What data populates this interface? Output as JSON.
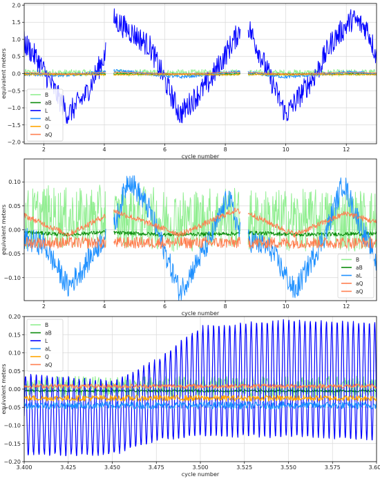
{
  "colors": {
    "B": "#90ee90",
    "aB": "#0a8a0a",
    "L": "#0000ff",
    "aL": "#1e90ff",
    "Q": "#ffa500",
    "aQ": "#ff7f50",
    "grid": "#d8d8d8",
    "axes": "#000000"
  },
  "chart_data": [
    {
      "type": "line",
      "xlabel": "cycle number",
      "ylabel": "equivalent meters",
      "xlim": [
        1.35,
        13.0
      ],
      "ylim": [
        -2.05,
        2.05
      ],
      "xticks": [
        2,
        4,
        6,
        8,
        10,
        12
      ],
      "xtick_labels": [
        "2",
        "4",
        "6",
        "8",
        "10",
        "12"
      ],
      "yticks": [
        -2.0,
        -1.5,
        -1.0,
        -0.5,
        0.0,
        0.5,
        1.0,
        1.5,
        2.0
      ],
      "ytick_labels": [
        "−2.0",
        "−1.5",
        "−1.0",
        "−0.5",
        "0.0",
        "0.5",
        "1.0",
        "1.5",
        "2.0"
      ],
      "grid": true,
      "legend": "lower-left",
      "gaps": [
        [
          4.05,
          4.3
        ],
        [
          8.5,
          8.75
        ]
      ],
      "series": [
        {
          "name": "B",
          "x": [
            1.35,
            2,
            3,
            4,
            4.3,
            5,
            6,
            7,
            8,
            8.5,
            8.75,
            10,
            11,
            12,
            13
          ],
          "y": [
            0.03,
            0.03,
            0.02,
            0.03,
            0.02,
            0.02,
            0.02,
            0.02,
            0.03,
            0.02,
            0.02,
            0.02,
            0.02,
            0.02,
            0.03
          ],
          "noise": 0.1
        },
        {
          "name": "aB",
          "x": [
            1.35,
            13
          ],
          "y": [
            -0.01,
            -0.01
          ],
          "noise": 0.03
        },
        {
          "name": "L",
          "x": [
            1.35,
            1.8,
            2.8,
            3.4,
            4.05,
            4.3,
            5.5,
            6.5,
            7.5,
            8.5,
            8.75,
            10.0,
            11.0,
            11.5,
            12.2,
            12.7,
            13.0
          ],
          "y": [
            0.9,
            0.4,
            -1.2,
            -0.6,
            0.6,
            1.6,
            0.8,
            -1.2,
            -0.2,
            1.3,
            1.4,
            -1.2,
            0.0,
            0.9,
            1.6,
            1.3,
            0.5
          ],
          "noise": 0.35
        },
        {
          "name": "aL",
          "x": [
            1.35,
            2.8,
            4,
            4.5,
            6.5,
            8.3,
            8.75,
            10,
            12,
            13
          ],
          "y": [
            -0.02,
            -0.05,
            0.05,
            0.08,
            -0.1,
            0.04,
            0.03,
            -0.1,
            0.04,
            0.0
          ],
          "noise": 0.05
        },
        {
          "name": "Q",
          "x": [
            1.35,
            13
          ],
          "y": [
            -0.03,
            -0.03
          ],
          "noise": 0.02
        },
        {
          "name": "aQ",
          "x": [
            1.35,
            2.7,
            4,
            4.5,
            6.5,
            8.3,
            8.75,
            10.2,
            12,
            13
          ],
          "y": [
            0.03,
            -0.01,
            0.03,
            0.04,
            -0.01,
            0.04,
            0.03,
            -0.01,
            0.03,
            0.02
          ],
          "noise": 0.01
        }
      ]
    },
    {
      "type": "line",
      "xlabel": "cycle number",
      "ylabel": "equivalent meters",
      "xlim": [
        1.35,
        13.0
      ],
      "ylim": [
        -0.148,
        0.148
      ],
      "xticks": [
        2,
        4,
        6,
        8,
        10,
        12
      ],
      "xtick_labels": [
        "2",
        "4",
        "6",
        "8",
        "10",
        "12"
      ],
      "yticks": [
        -0.1,
        -0.05,
        0.0,
        0.05,
        0.1
      ],
      "ytick_labels": [
        "−0.10",
        "−0.05",
        "0.00",
        "0.05",
        "0.10"
      ],
      "grid": true,
      "legend": "lower-right",
      "gaps": [
        [
          4.05,
          4.3
        ],
        [
          8.5,
          8.75
        ]
      ],
      "series": [
        {
          "name": "B",
          "x": [
            1.35,
            2,
            3,
            4,
            4.3,
            5,
            6,
            7,
            8,
            8.5,
            8.75,
            10,
            11,
            12,
            13
          ],
          "y": [
            0.02,
            0.03,
            0.02,
            0.03,
            0.02,
            0.03,
            0.02,
            0.02,
            0.03,
            0.02,
            0.02,
            0.02,
            0.02,
            0.02,
            0.02
          ],
          "noise": 0.065
        },
        {
          "name": "aB",
          "x": [
            1.35,
            2.8,
            4,
            4.3,
            6,
            8.5,
            8.75,
            10.5,
            13
          ],
          "y": [
            -0.005,
            -0.01,
            -0.005,
            -0.006,
            -0.01,
            -0.008,
            -0.006,
            -0.01,
            -0.008
          ],
          "noise": 0.004
        },
        {
          "name": "aL",
          "x": [
            1.35,
            2,
            2.8,
            3.3,
            4.05,
            4.3,
            4.8,
            5.5,
            6.5,
            7.5,
            8.1,
            8.5,
            8.75,
            9.5,
            10.3,
            11.3,
            11.9,
            12.4,
            13.0
          ],
          "y": [
            -0.02,
            -0.03,
            -0.12,
            -0.08,
            -0.01,
            0.0,
            0.11,
            0.04,
            -0.13,
            -0.02,
            0.07,
            -0.01,
            -0.02,
            -0.04,
            -0.13,
            -0.01,
            0.1,
            0.02,
            -0.07
          ],
          "noise": 0.025
        },
        {
          "name": "aQ",
          "x": [
            1.35,
            13
          ],
          "y": [
            -0.027,
            -0.027
          ],
          "noise": 0.012
        },
        {
          "name": "aQ",
          "x": [
            1.35,
            2.8,
            4.05,
            4.3,
            6.5,
            8.3,
            8.75,
            10.3,
            12.0,
            13.0
          ],
          "y": [
            0.03,
            -0.01,
            0.03,
            0.04,
            -0.01,
            0.04,
            0.035,
            -0.01,
            0.035,
            0.015
          ],
          "noise": 0.006
        }
      ]
    },
    {
      "type": "line",
      "xlabel": "cycle number",
      "ylabel": "equivalent meters",
      "xlim": [
        3.4,
        3.6
      ],
      "ylim": [
        -0.2,
        0.2
      ],
      "xticks": [
        3.4,
        3.425,
        3.45,
        3.475,
        3.5,
        3.525,
        3.55,
        3.575,
        3.6
      ],
      "xtick_labels": [
        "3.400",
        "3.425",
        "3.450",
        "3.475",
        "3.500",
        "3.525",
        "3.550",
        "3.575",
        "3.600"
      ],
      "yticks": [
        -0.2,
        -0.15,
        -0.1,
        -0.05,
        0.0,
        0.05,
        0.1,
        0.15,
        0.2
      ],
      "ytick_labels": [
        "−0.20",
        "−0.15",
        "−0.10",
        "−0.05",
        "0.00",
        "0.05",
        "0.10",
        "0.15",
        "0.20"
      ],
      "grid": true,
      "legend": "upper-left",
      "series": [
        {
          "name": "B",
          "x": [
            3.4,
            3.6
          ],
          "y": [
            0.005,
            0.005
          ],
          "noise": 0.03
        },
        {
          "name": "aB",
          "x": [
            3.4,
            3.6
          ],
          "y": [
            -0.005,
            -0.005
          ],
          "noise": 0.003
        },
        {
          "name": "L",
          "x": [
            3.4,
            3.45,
            3.475,
            3.5,
            3.55,
            3.6
          ],
          "y": [
            -0.07,
            -0.08,
            -0.03,
            0.02,
            0.03,
            0.02
          ],
          "amplitude": [
            0.11,
            0.1,
            0.11,
            0.15,
            0.16,
            0.16
          ],
          "period": 0.00305
        },
        {
          "name": "aL",
          "x": [
            3.4,
            3.6
          ],
          "y": [
            -0.045,
            -0.045
          ],
          "noise": 0.01
        },
        {
          "name": "Q",
          "x": [
            3.4,
            3.6
          ],
          "y": [
            -0.025,
            -0.025
          ],
          "noise": 0.008
        },
        {
          "name": "aQ",
          "x": [
            3.4,
            3.6
          ],
          "y": [
            0.008,
            0.008
          ],
          "noise": 0.006
        }
      ]
    }
  ]
}
